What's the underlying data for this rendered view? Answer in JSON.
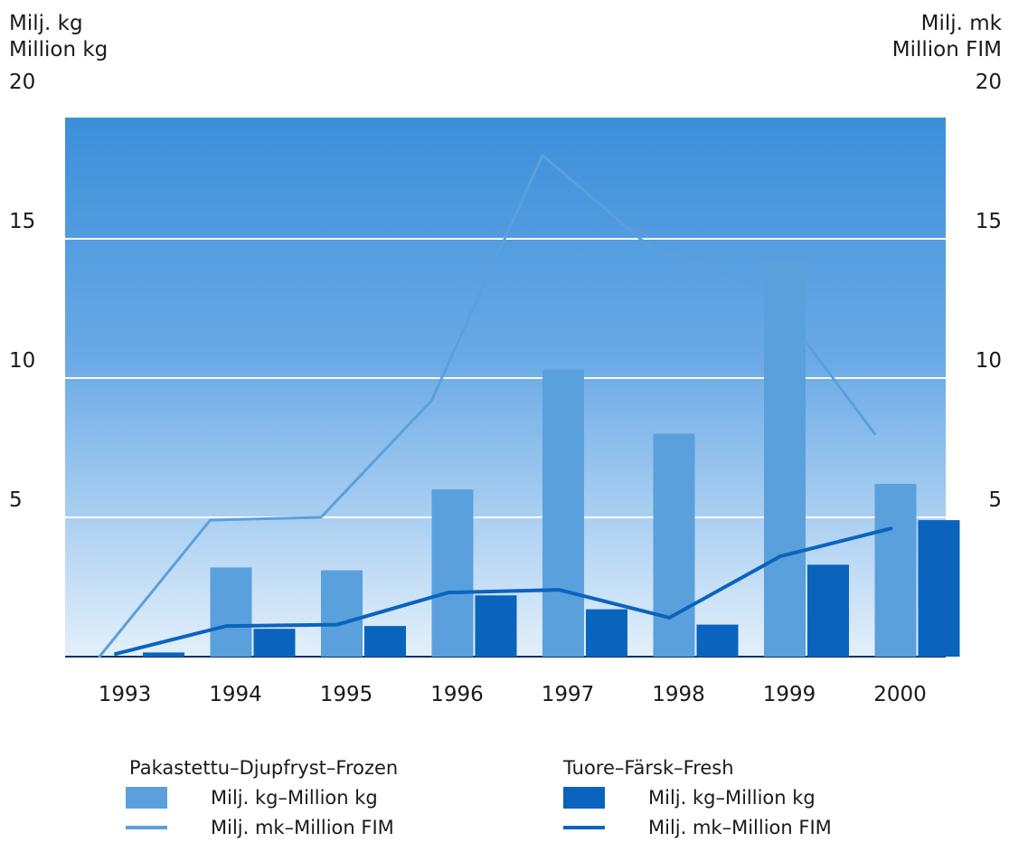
{
  "chart_data": {
    "type": "bar",
    "categories": [
      "1993",
      "1994",
      "1995",
      "1996",
      "1997",
      "1998",
      "1999",
      "2000"
    ],
    "left_axis": {
      "label_fi": "Milj. kg",
      "label_en": "Million kg",
      "ticks": [
        "5",
        "10",
        "15",
        "20"
      ],
      "ylim": [
        0,
        20
      ]
    },
    "right_axis": {
      "label_fi": "Milj. mk",
      "label_en": "Million FIM",
      "ticks": [
        "5",
        "10",
        "15",
        "20"
      ],
      "ylim": [
        0,
        20
      ]
    },
    "series": [
      {
        "name": "Milj. kg–Million kg",
        "group": "Pakastettu–Djupfryst–Frozen",
        "kind": "bar",
        "axis": "left",
        "color": "#5aa0dc",
        "values": [
          0,
          3.2,
          3.1,
          6.0,
          10.3,
          8.0,
          14.3,
          6.2
        ]
      },
      {
        "name": "Milj. mk–Million FIM",
        "group": "Pakastettu–Djupfryst–Frozen",
        "kind": "line",
        "axis": "right",
        "color": "#5aa0dc",
        "values": [
          0,
          4.9,
          5.0,
          9.2,
          18.0,
          14.6,
          13.3,
          8.0
        ]
      },
      {
        "name": "Milj. kg–Million kg",
        "group": "Tuore–Färsk–Fresh",
        "kind": "bar",
        "axis": "left",
        "color": "#0a64be",
        "values": [
          0.15,
          1.0,
          1.1,
          2.2,
          1.7,
          1.15,
          3.3,
          4.9
        ]
      },
      {
        "name": "Milj. mk–Million FIM",
        "group": "Tuore–Färsk–Fresh",
        "kind": "line",
        "axis": "right",
        "color": "#0a64be",
        "values": [
          0.1,
          1.1,
          1.15,
          2.3,
          2.4,
          1.4,
          3.6,
          4.6
        ]
      }
    ],
    "grid": true,
    "legend_position": "bottom"
  },
  "legend": {
    "frozen_title": "Pakastettu–Djupfryst–Frozen",
    "fresh_title": "Tuore–Färsk–Fresh",
    "kg_label": "Milj. kg–Million kg",
    "fim_label": "Milj. mk–Million FIM"
  }
}
